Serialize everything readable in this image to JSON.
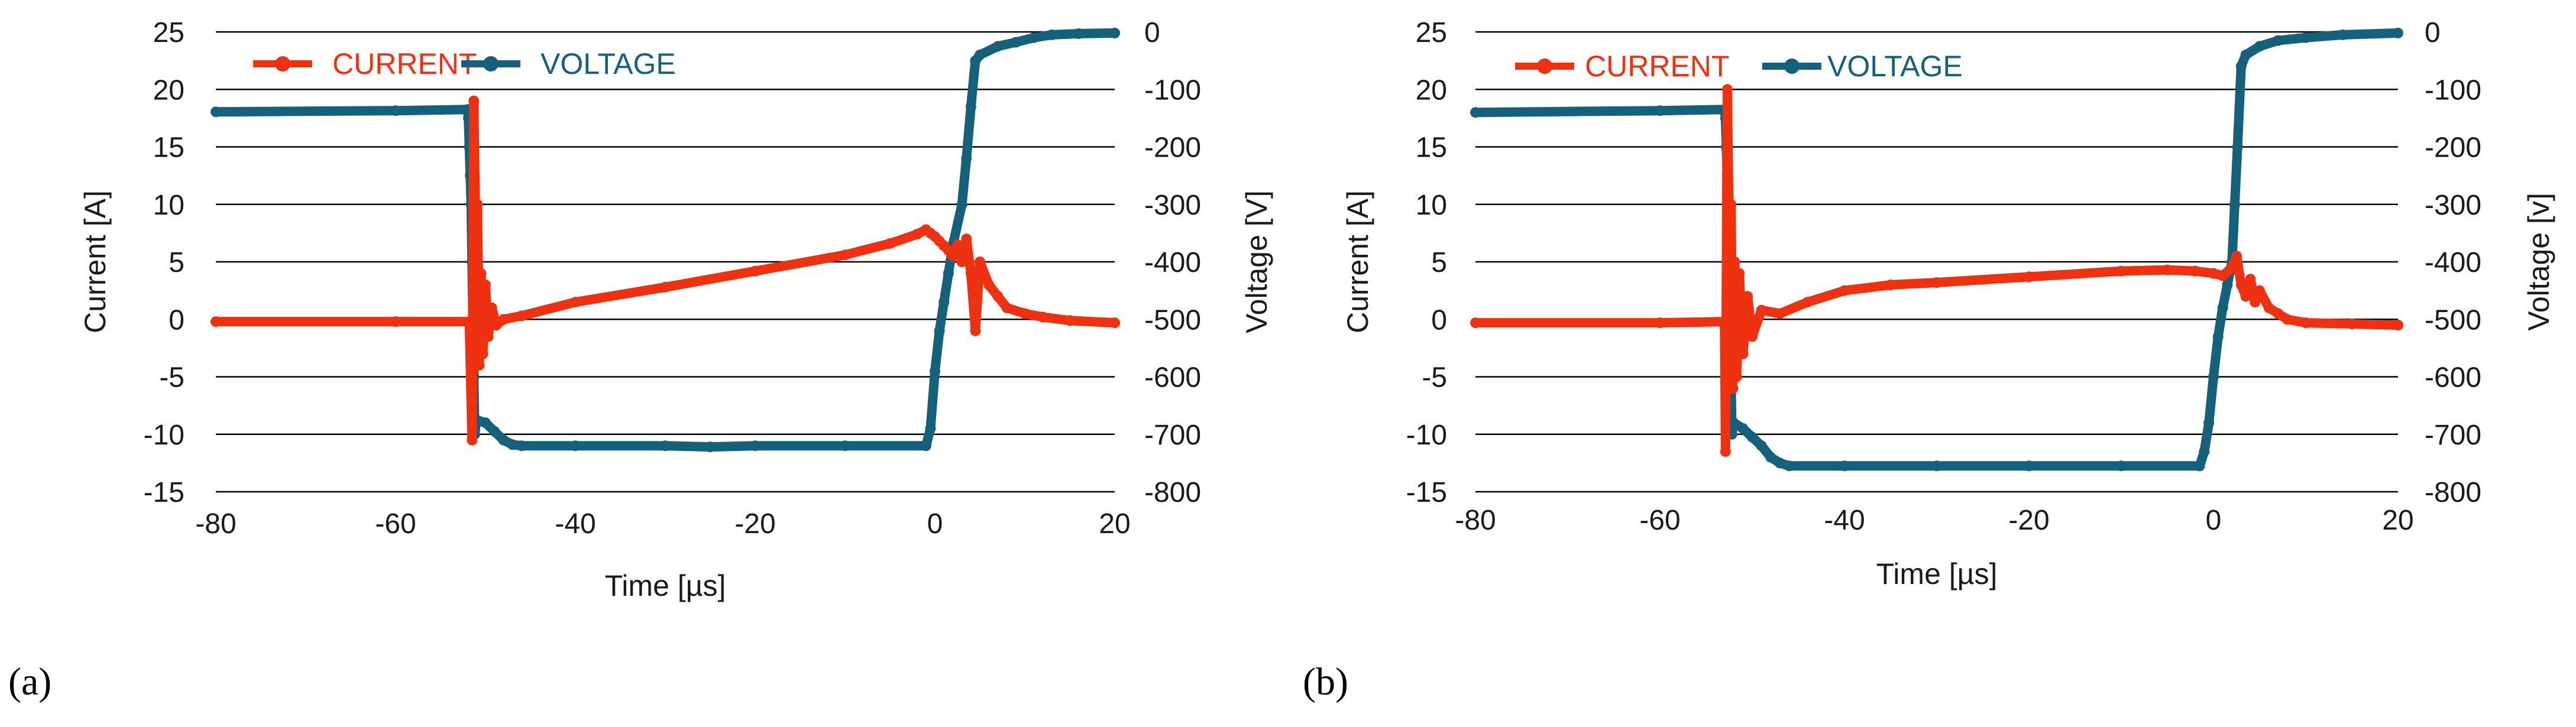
{
  "colors": {
    "current": "#ee3110",
    "voltage": "#15607a"
  },
  "chart_data": [
    {
      "type": "line",
      "panel_label": "(a)",
      "xlabel": "Time [µs]",
      "ylabel": "Current [A]",
      "y2label": "Voltage [V]",
      "xlim": [
        -80,
        20
      ],
      "ylim": [
        -15,
        25
      ],
      "y2lim": [
        -800,
        0
      ],
      "xticks": [
        "-80",
        "-60",
        "-40",
        "-20",
        "0",
        "20"
      ],
      "yticks": [
        "25",
        "20",
        "15",
        "10",
        "5",
        "0",
        "-5",
        "-10",
        "-15"
      ],
      "y2ticks": [
        "0",
        "-100",
        "-200",
        "-300",
        "-400",
        "-500",
        "-600",
        "-700",
        "-800"
      ],
      "grid": true,
      "legend": "top-left",
      "series": [
        {
          "name": "CURRENT",
          "axis": "left",
          "x": [
            -80,
            -60,
            -51.8,
            -51.5,
            -51.3,
            -51.1,
            -50.9,
            -50.7,
            -50.5,
            -50.3,
            -50.0,
            -49.7,
            -49.3,
            -48.8,
            -48.0,
            -46.0,
            -40.0,
            -30.0,
            -20.0,
            -10.0,
            -5.0,
            -2.0,
            -1.0,
            -0.5,
            0.0,
            0.5,
            1.0,
            1.5,
            2.0,
            2.5,
            3.0,
            3.5,
            4.0,
            4.5,
            5.0,
            6.0,
            7.0,
            8.0,
            10.0,
            12.0,
            15.0,
            20.0
          ],
          "y": [
            -0.2,
            -0.2,
            -0.2,
            -10.5,
            19.0,
            7.0,
            10.0,
            -4.0,
            4.0,
            -3.0,
            3.0,
            -1.5,
            1.0,
            -0.5,
            0.0,
            0.3,
            1.5,
            2.8,
            4.2,
            5.6,
            6.6,
            7.4,
            7.8,
            7.5,
            7.2,
            6.8,
            6.4,
            6.0,
            5.5,
            6.5,
            5.0,
            7.0,
            4.0,
            -1.0,
            5.0,
            3.0,
            2.0,
            1.0,
            0.5,
            0.2,
            -0.1,
            -0.3
          ]
        },
        {
          "name": "VOLTAGE",
          "axis": "right",
          "x": [
            -80,
            -60,
            -52.0,
            -51.9,
            -51.8,
            -51.7,
            -51.6,
            -51.5,
            -51.4,
            -51.3,
            -51.2,
            -51.0,
            -50.0,
            -49.0,
            -48.0,
            -47.0,
            -46.0,
            -40.0,
            -30.0,
            -25.0,
            -20.0,
            -10.0,
            -1.0,
            -0.5,
            0.0,
            0.5,
            1.0,
            1.5,
            2.0,
            3.0,
            3.5,
            4.0,
            4.5,
            5.0,
            7.0,
            9.0,
            11.0,
            13.0,
            16.0,
            20.0
          ],
          "y": [
            -139,
            -137,
            -135,
            -150,
            -200,
            -250,
            -300,
            -400,
            -500,
            -600,
            -700,
            -675,
            -680,
            -695,
            -710,
            -718,
            -720,
            -720,
            -720,
            -722,
            -720,
            -720,
            -720,
            -690,
            -590,
            -520,
            -470,
            -420,
            -370,
            -300,
            -220,
            -130,
            -50,
            -40,
            -25,
            -18,
            -10,
            -5,
            -3,
            -2
          ]
        }
      ]
    },
    {
      "type": "line",
      "panel_label": "(b)",
      "xlabel": "Time [µs]",
      "ylabel": "Current [A]",
      "y2label": "Voltage [v]",
      "xlim": [
        -80,
        20
      ],
      "ylim": [
        -15,
        25
      ],
      "y2lim": [
        -800,
        0
      ],
      "xticks": [
        "-80",
        "-60",
        "-40",
        "-20",
        "0",
        "20"
      ],
      "yticks": [
        "25",
        "20",
        "15",
        "10",
        "5",
        "0",
        "-5",
        "-10",
        "-15"
      ],
      "y2ticks": [
        "0",
        "-100",
        "-200",
        "-300",
        "-400",
        "-500",
        "-600",
        "-700",
        "-800"
      ],
      "grid": true,
      "legend": "top-left",
      "series": [
        {
          "name": "CURRENT",
          "axis": "left",
          "x": [
            -80,
            -60,
            -53.0,
            -52.9,
            -52.7,
            -52.5,
            -52.3,
            -52.1,
            -51.9,
            -51.7,
            -51.4,
            -51.0,
            -50.5,
            -50.0,
            -49.0,
            -47.0,
            -44.0,
            -40.0,
            -35.0,
            -30.0,
            -20.0,
            -10.0,
            -5.0,
            -2.0,
            0.0,
            1.0,
            2.0,
            2.5,
            3.0,
            3.5,
            4.0,
            4.5,
            5.0,
            6.0,
            7.0,
            8.0,
            10.0,
            15.0,
            20.0
          ],
          "y": [
            -0.3,
            -0.3,
            -0.2,
            -11.5,
            20.0,
            7.0,
            10.0,
            -6.0,
            5.0,
            -5.0,
            4.0,
            -3.0,
            2.0,
            -1.5,
            0.8,
            0.5,
            1.5,
            2.5,
            3.0,
            3.2,
            3.7,
            4.2,
            4.3,
            4.2,
            4.0,
            3.8,
            4.5,
            5.5,
            3.0,
            2.0,
            3.5,
            1.5,
            2.5,
            1.0,
            0.5,
            0.0,
            -0.3,
            -0.4,
            -0.5
          ]
        },
        {
          "name": "VOLTAGE",
          "axis": "right",
          "x": [
            -80,
            -60,
            -53.0,
            -52.9,
            -52.8,
            -52.7,
            -52.6,
            -52.5,
            -52.4,
            -52.3,
            -52.2,
            -52.0,
            -51.0,
            -50.0,
            -49.0,
            -48.0,
            -47.0,
            -46.0,
            -40.0,
            -30.0,
            -20.0,
            -10.0,
            -1.5,
            -1.0,
            -0.5,
            0.0,
            0.5,
            1.0,
            1.5,
            2.0,
            2.3,
            2.6,
            3.0,
            3.5,
            5.0,
            7.0,
            10.0,
            14.0,
            20.0
          ],
          "y": [
            -140,
            -137,
            -135,
            -150,
            -200,
            -250,
            -300,
            -400,
            -500,
            -600,
            -700,
            -680,
            -690,
            -705,
            -720,
            -740,
            -750,
            -755,
            -755,
            -755,
            -755,
            -755,
            -755,
            -730,
            -680,
            -600,
            -530,
            -480,
            -440,
            -400,
            -300,
            -200,
            -60,
            -40,
            -25,
            -15,
            -10,
            -5,
            -2
          ]
        }
      ]
    }
  ]
}
